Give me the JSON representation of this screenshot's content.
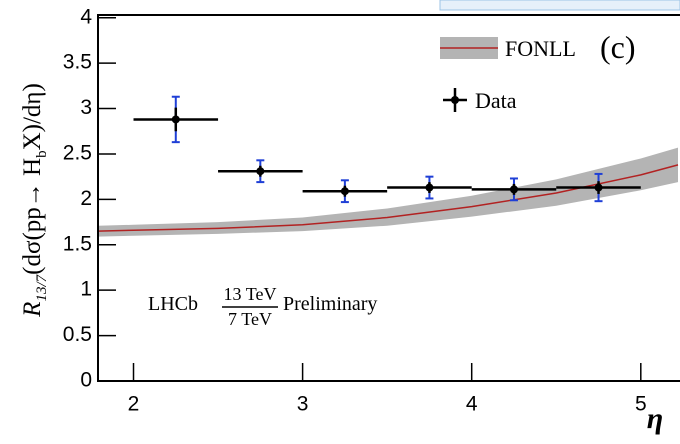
{
  "chart_data": {
    "type": "errorbar",
    "ylabel": [
      "R",
      "13/7",
      "(dσ(pp→ H",
      "b",
      "X)/dη)"
    ],
    "xlabel": "η",
    "panel_label": "(c)",
    "annotation": {
      "experiment": "LHCb",
      "numerator": "13 TeV",
      "denominator": "7 TeV",
      "status": "Preliminary"
    },
    "xlim": [
      1.79,
      5.22
    ],
    "xticks": [
      2,
      3,
      4,
      5
    ],
    "ylim": [
      0,
      4.03
    ],
    "yticks": [
      0,
      0.5,
      1,
      1.5,
      2,
      2.5,
      3,
      3.5,
      4
    ],
    "series": [
      {
        "name": "FONLL",
        "color": "#b22222",
        "band_color": "#b4b4b4",
        "x": [
          1.79,
          2.0,
          2.5,
          3.0,
          3.5,
          4.0,
          4.5,
          5.0,
          5.22
        ],
        "values": [
          1.65,
          1.66,
          1.68,
          1.72,
          1.8,
          1.92,
          2.07,
          2.27,
          2.38
        ],
        "lower": [
          1.59,
          1.6,
          1.62,
          1.65,
          1.71,
          1.81,
          1.93,
          2.1,
          2.19
        ],
        "upper": [
          1.71,
          1.72,
          1.75,
          1.8,
          1.9,
          2.04,
          2.22,
          2.45,
          2.57
        ]
      },
      {
        "name": "Data",
        "color": "#000000",
        "total_color": "#1f3fd6",
        "x": [
          2.25,
          2.75,
          3.25,
          3.75,
          4.25,
          4.75
        ],
        "xerr": [
          0.25,
          0.25,
          0.25,
          0.25,
          0.25,
          0.25
        ],
        "values": [
          2.88,
          2.31,
          2.09,
          2.13,
          2.11,
          2.13
        ],
        "stat_err": [
          0.13,
          0.06,
          0.06,
          0.06,
          0.06,
          0.07
        ],
        "total_err": [
          0.25,
          0.12,
          0.12,
          0.12,
          0.12,
          0.15
        ]
      }
    ]
  }
}
